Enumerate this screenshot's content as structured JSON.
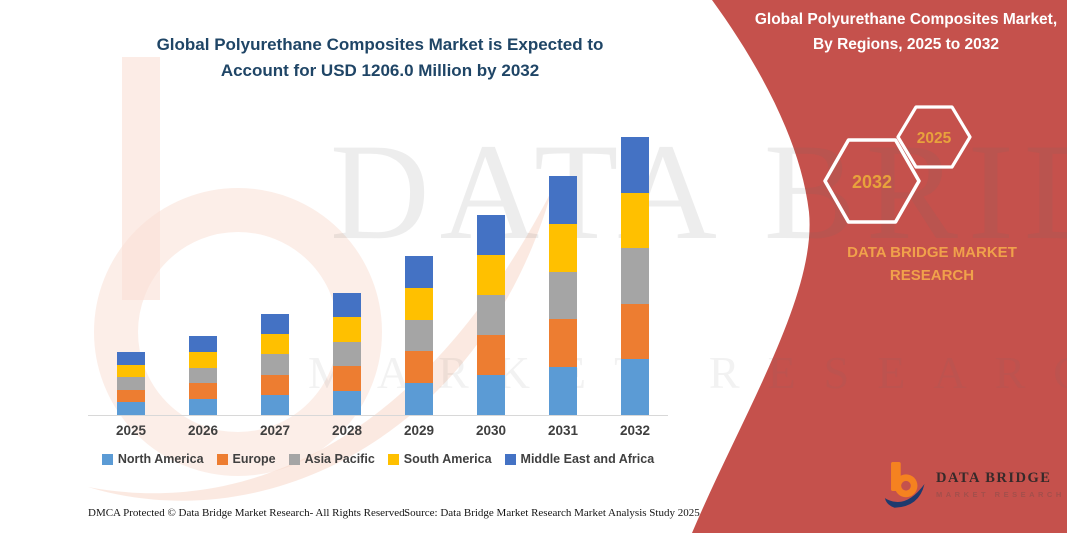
{
  "header": {
    "main_title": "Global Polyurethane Composites Market is Expected to Account for USD 1206.0 Million by 2032"
  },
  "banner": {
    "title": "Global Polyurethane Composites Market, By Regions, 2025 to 2032",
    "hexagons": [
      {
        "year": "2032"
      },
      {
        "year": "2025"
      }
    ],
    "brand_caption": "DATA BRIDGE MARKET RESEARCH",
    "background_color": "#C5514C"
  },
  "watermark": {
    "line1": "DATA BRIDGE",
    "line2": "MARKET RESEARCH"
  },
  "logo": {
    "name": "DATA BRIDGE",
    "tagline": "MARKET RESEARCH",
    "icon_orange": "#F58220",
    "icon_navy": "#1E3A6E"
  },
  "footer": {
    "dmca": "DMCA Protected © Data Bridge Market Research-  All Rights Reserved.",
    "source": "Source: Data Bridge Market Research  Market Analysis Study 2025"
  },
  "colors": {
    "title_navy": "#1F4566",
    "banner_red": "#C5514C",
    "gold": "#E8A23C",
    "axis_text": "#3F3F3F"
  },
  "chart_data": {
    "type": "bar",
    "stacked": true,
    "title": "Global Polyurethane Composites Market is Expected to Account for USD 1206.0 Million by 2032",
    "unit": "USD Million",
    "categories": [
      "2025",
      "2026",
      "2027",
      "2028",
      "2029",
      "2030",
      "2031",
      "2032"
    ],
    "series": [
      {
        "name": "North America",
        "color": "#5B9BD5",
        "values": [
          54.6,
          68.6,
          87.6,
          105.8,
          138.0,
          173.6,
          207.4,
          241.2
        ]
      },
      {
        "name": "Europe",
        "color": "#ED7D31",
        "values": [
          54.6,
          68.6,
          87.6,
          105.8,
          138.0,
          173.6,
          207.4,
          241.2
        ]
      },
      {
        "name": "Asia Pacific",
        "color": "#A5A5A5",
        "values": [
          54.6,
          68.6,
          87.6,
          105.8,
          138.0,
          173.6,
          207.4,
          241.2
        ]
      },
      {
        "name": "South America",
        "color": "#FFC000",
        "values": [
          54.6,
          68.6,
          87.6,
          105.8,
          138.0,
          173.6,
          207.4,
          241.2
        ]
      },
      {
        "name": "Middle East and Africa",
        "color": "#4472C4",
        "values": [
          54.6,
          68.6,
          87.6,
          105.8,
          138.0,
          173.6,
          207.4,
          241.2
        ]
      }
    ],
    "totals": [
      273.0,
      343.0,
      438.0,
      529.0,
      690.0,
      868.0,
      1037.0,
      1206.0
    ],
    "ylim": [
      0,
      1280
    ],
    "grid": false,
    "legend_position": "bottom",
    "xlabel": "",
    "ylabel": ""
  }
}
